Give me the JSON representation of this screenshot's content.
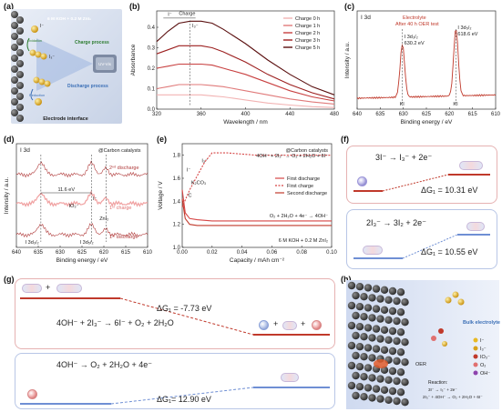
{
  "labels": {
    "a": "(a)",
    "b": "(b)",
    "c": "(c)",
    "d": "(d)",
    "e": "(e)",
    "f": "(f)",
    "g": "(g)",
    "h": "(h)"
  },
  "panel_a": {
    "electrolyte": "6 M KOH + 0.2 M ZnI₂",
    "charge": "Charge process",
    "discharge": "Discharge process",
    "oxidation": "Oxidation",
    "reduction": "Reduction",
    "uvvis": "UV-Vis",
    "interface": "Electrode interface",
    "i_minus": "I⁻",
    "i3_minus": "I₃⁻"
  },
  "panel_b": {
    "ylabel": "Absorbance",
    "xlabel": "Wavelength / nm",
    "xticks": [
      "320",
      "360",
      "400",
      "440",
      "480"
    ],
    "yticks": [
      "0.0",
      "0.1",
      "0.2",
      "0.3",
      "0.4"
    ],
    "arrow_text": "Charge",
    "i_label": "I⁻",
    "i3_label": "I₃⁻",
    "legend": [
      "Charge 0 h",
      "Charge 1 h",
      "Charge 2 h",
      "Charge 3 h",
      "Charge 5 h"
    ]
  },
  "panel_c": {
    "ylabel": "Intensity / a.u.",
    "xlabel": "Binding energy / eV",
    "xticks": [
      "640",
      "635",
      "630",
      "625",
      "620",
      "615",
      "610"
    ],
    "title": "I 3d",
    "note1": "Electrolyte",
    "note2": "After 40 h OER test",
    "peak1": "I 3d₃/₂",
    "peak1_val": "630.2 eV",
    "peak2": "I 3d₅/₂",
    "peak2_val": "618.6 eV",
    "ki1": "KI",
    "ki2": "KI"
  },
  "panel_d": {
    "ylabel": "Intensity / a.u.",
    "xlabel": "Binding energy / eV",
    "xticks": [
      "640",
      "635",
      "630",
      "625",
      "620",
      "615",
      "610"
    ],
    "title": "I 3d",
    "catalyst": "@Carbon catalysts",
    "second_discharge": "2ⁿᵈ discharge",
    "first_charge": "1ˢᵗ charge",
    "first_discharge": "1ˢᵗ discharge",
    "split": "11.6 eV",
    "io3": "IO₃⁻",
    "i_minus": "I⁻",
    "zni2": "ZnI₂",
    "d32": "I 3d₃/₂",
    "d52": "I 3d₅/₂"
  },
  "panel_e": {
    "ylabel": "Voltage / V",
    "xlabel": "Capacity / mAh cm⁻²",
    "xticks": [
      "0.00",
      "0.02",
      "0.04",
      "0.06",
      "0.08",
      "0.10"
    ],
    "yticks": [
      "1.0",
      "1.2",
      "1.4",
      "1.6",
      "1.8"
    ],
    "catalyst": "@Carbon catalysts",
    "eq_top": "4OH⁻ + 2I₃⁻ → O₂ + 2H₂O + 6I⁻",
    "eq_bottom": "O₂ + 2H₂O + 4e⁻ → 4OH⁻",
    "electrolyte": "6 M KOH + 0.2 M ZnI₂",
    "k2co3": "K₂CO₃",
    "i_lbl": "I⁻",
    "i3_lbl": "I₃⁻",
    "c_lbl": "C",
    "legend": [
      "First discharge",
      "First charge",
      "Second discharge"
    ]
  },
  "panel_f": {
    "eq1": "3I⁻ → I₃⁻ + 2e⁻",
    "dg1": "ΔG₁ = 10.31 eV",
    "eq2": "2I₃⁻ → 3I₂ + 2e⁻",
    "dg2": "ΔG₁ = 10.55 eV"
  },
  "panel_g": {
    "dg_top": "ΔG₁ = -7.73 eV",
    "eq1": "4OH⁻ + 2I₃⁻ → 6I⁻ + O₂ + 2H₂O",
    "eq2": "4OH⁻ → O₂ + 2H₂O + 4e⁻",
    "dg_bottom": "ΔG₁= 12.90 eV"
  },
  "panel_h": {
    "bulk": "Bulk electrolyte",
    "oer": "OER",
    "reaction_title": "Reaction:",
    "r1": "3I⁻ → I₃⁻ + 2e⁻",
    "r2": "2I₃⁻ + 4OH⁻ → O₂ + 2H₂O + 6I⁻",
    "legend": [
      "I⁻",
      "I₃⁻",
      "IO₃⁻",
      "O₂",
      "OH⁻"
    ],
    "colors": [
      "#e8b923",
      "#d8a21a",
      "#c0392b",
      "#e07070",
      "#8e44ad"
    ]
  },
  "chart_data": [
    {
      "type": "line",
      "panel": "b",
      "xlabel": "Wavelength / nm",
      "ylabel": "Absorbance",
      "xlim": [
        320,
        480
      ],
      "ylim": [
        0,
        0.48
      ],
      "legend_position": "top-right",
      "x": [
        320,
        330,
        340,
        350,
        360,
        370,
        380,
        400,
        420,
        440,
        460,
        480
      ],
      "series": [
        {
          "name": "Charge 0 h",
          "color": "#f2b3b3",
          "values": [
            0.07,
            0.07,
            0.07,
            0.07,
            0.07,
            0.065,
            0.06,
            0.045,
            0.03,
            0.02,
            0.012,
            0.008
          ]
        },
        {
          "name": "Charge 1 h",
          "color": "#e07a7a",
          "values": [
            0.1,
            0.11,
            0.12,
            0.12,
            0.12,
            0.115,
            0.11,
            0.09,
            0.07,
            0.05,
            0.035,
            0.025
          ]
        },
        {
          "name": "Charge 2 h",
          "color": "#c84040",
          "values": [
            0.2,
            0.21,
            0.22,
            0.22,
            0.22,
            0.215,
            0.2,
            0.17,
            0.13,
            0.09,
            0.06,
            0.04
          ]
        },
        {
          "name": "Charge 3 h",
          "color": "#9c1f1f",
          "values": [
            0.27,
            0.29,
            0.31,
            0.31,
            0.31,
            0.3,
            0.28,
            0.23,
            0.17,
            0.12,
            0.08,
            0.05
          ]
        },
        {
          "name": "Charge 5 h",
          "color": "#5a0f0f",
          "values": [
            0.33,
            0.38,
            0.42,
            0.43,
            0.43,
            0.42,
            0.39,
            0.32,
            0.24,
            0.17,
            0.11,
            0.07
          ]
        }
      ]
    },
    {
      "type": "line",
      "panel": "c",
      "xlabel": "Binding energy / eV",
      "ylabel": "Intensity / a.u.",
      "xlim": [
        640,
        610
      ],
      "x_reversed": true,
      "series": [
        {
          "name": "",
          "color": "#c0392b",
          "peaks": [
            630.2,
            618.6
          ]
        }
      ]
    },
    {
      "type": "line",
      "panel": "e",
      "xlabel": "Capacity / mAh cm⁻²",
      "ylabel": "Voltage / V",
      "xlim": [
        0,
        0.1
      ],
      "ylim": [
        1.0,
        1.9
      ],
      "legend_position": "middle-right",
      "series": [
        {
          "name": "First discharge",
          "color": "#d64545",
          "x": [
            0.0,
            0.002,
            0.005,
            0.01,
            0.02,
            0.04,
            0.06,
            0.08,
            0.1
          ],
          "values": [
            1.5,
            1.3,
            1.25,
            1.24,
            1.23,
            1.23,
            1.23,
            1.23,
            1.23
          ]
        },
        {
          "name": "First charge",
          "color": "#d64545",
          "x": [
            0.0,
            0.005,
            0.01,
            0.015,
            0.02,
            0.03,
            0.05,
            0.07,
            0.1
          ],
          "values": [
            1.35,
            1.5,
            1.62,
            1.74,
            1.82,
            1.82,
            1.8,
            1.8,
            1.8
          ]
        },
        {
          "name": "Second discharge",
          "color": "#c0392b",
          "x": [
            0.0,
            0.002,
            0.005,
            0.01,
            0.02,
            0.04,
            0.06,
            0.08,
            0.1
          ],
          "values": [
            1.42,
            1.25,
            1.2,
            1.19,
            1.19,
            1.19,
            1.19,
            1.19,
            1.19
          ]
        }
      ]
    }
  ]
}
